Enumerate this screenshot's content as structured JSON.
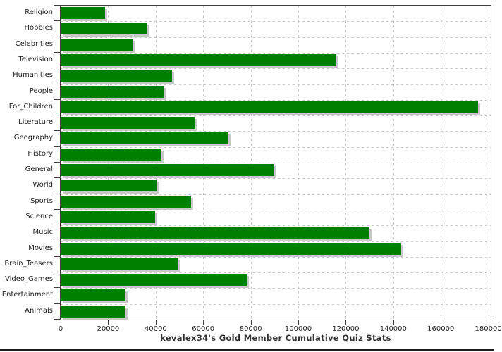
{
  "chart_title": "kevalex34's Gold Member Cumulative Quiz Stats",
  "colors": {
    "bar": "#008000",
    "bar_shadow": "#c8c8c8",
    "grid": "#c9c9c9",
    "axis": "#3f3f3f",
    "text": "#222222",
    "title_text": "#333333",
    "background": "#ffffff",
    "bottom_border": "#1a1a1a"
  },
  "chart_data": {
    "type": "bar",
    "orientation": "horizontal",
    "title": "kevalex34's Gold Member Cumulative Quiz Stats",
    "xlabel": "",
    "ylabel": "",
    "categories": [
      "Religion",
      "Hobbies",
      "Celebrities",
      "Television",
      "Humanities",
      "People",
      "For_Children",
      "Literature",
      "Geography",
      "History",
      "General",
      "World",
      "Sports",
      "Science",
      "Music",
      "Movies",
      "Brain_Teasers",
      "Video_Games",
      "Entertainment",
      "Animals"
    ],
    "values": [
      18600,
      36200,
      30600,
      115900,
      46800,
      43400,
      175600,
      56500,
      70600,
      42300,
      89900,
      40600,
      55000,
      39700,
      130000,
      143400,
      49500,
      78300,
      27300,
      27400
    ],
    "xlim": [
      0,
      181000
    ],
    "x_ticks": [
      0,
      20000,
      40000,
      60000,
      80000,
      100000,
      120000,
      140000,
      160000,
      180000
    ],
    "x_tick_labels": [
      "0",
      "20000",
      "40000",
      "60000",
      "80000",
      "100000",
      "120000",
      "140000",
      "160000",
      "180000"
    ],
    "grid": true,
    "legend": false
  }
}
